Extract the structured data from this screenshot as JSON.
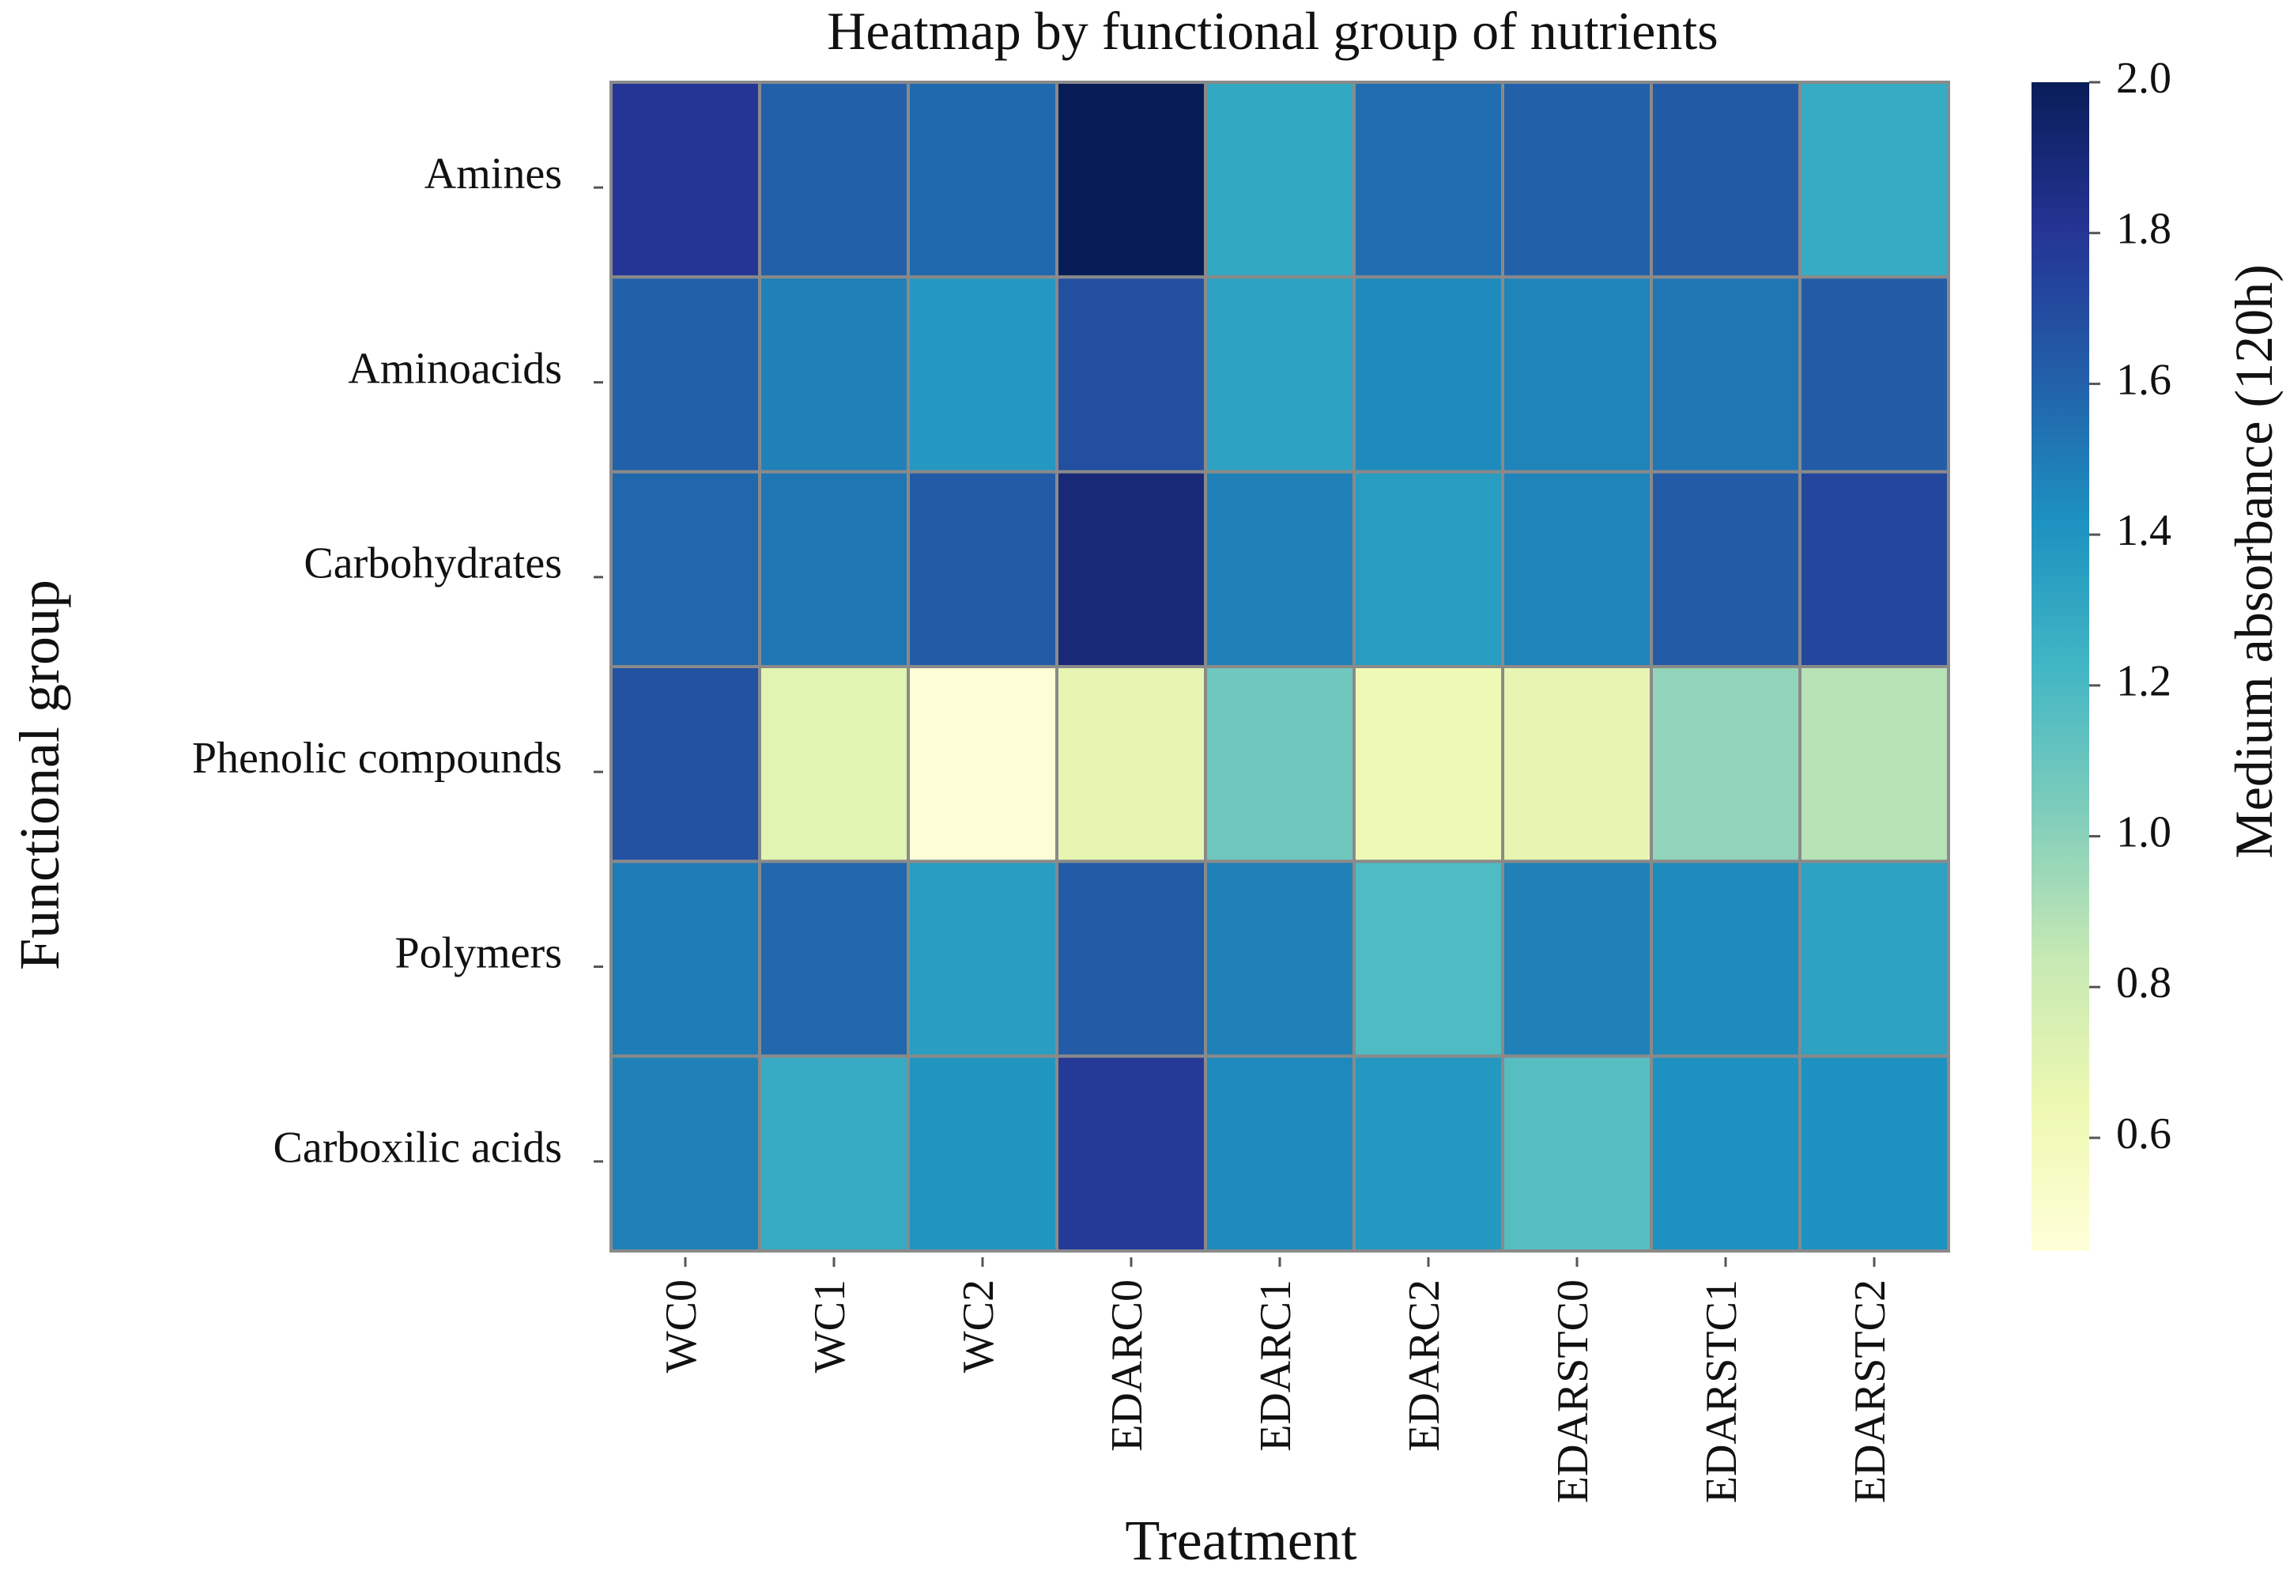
{
  "chart_data": {
    "type": "heatmap",
    "title": "Heatmap by functional group of nutrients",
    "xlabel": "Treatment",
    "ylabel": "Functional group",
    "colorbar_label": "Medium absorbance (120h)",
    "x_categories": [
      "WC0",
      "WC1",
      "WC2",
      "EDARC0",
      "EDARC1",
      "EDARC2",
      "EDARSTC0",
      "EDARSTC1",
      "EDARSTC2"
    ],
    "y_categories": [
      "Amines",
      "Aminoacids",
      "Carbohydrates",
      "Phenolic compounds",
      "Polymers",
      "Carboxilic acids"
    ],
    "values": [
      [
        1.8,
        1.6,
        1.57,
        2.0,
        1.3,
        1.55,
        1.6,
        1.63,
        1.28
      ],
      [
        1.6,
        1.48,
        1.38,
        1.68,
        1.33,
        1.44,
        1.47,
        1.52,
        1.62
      ],
      [
        1.58,
        1.52,
        1.62,
        1.9,
        1.48,
        1.36,
        1.47,
        1.62,
        1.72
      ],
      [
        1.67,
        0.7,
        0.47,
        0.68,
        1.08,
        0.62,
        0.68,
        0.98,
        0.88
      ],
      [
        1.5,
        1.58,
        1.35,
        1.62,
        1.48,
        1.18,
        1.48,
        1.44,
        1.33
      ],
      [
        1.48,
        1.28,
        1.4,
        1.78,
        1.45,
        1.38,
        1.16,
        1.42,
        1.42
      ]
    ],
    "colorbar": {
      "min": 0.45,
      "max": 2.0,
      "ticks": [
        0.6,
        0.8,
        1.0,
        1.2,
        1.4,
        1.6,
        1.8,
        2.0
      ],
      "tick_labels": [
        "0.6",
        "0.8",
        "1.0",
        "1.2",
        "1.4",
        "1.6",
        "1.8",
        "2.0"
      ],
      "colormap": "YlGnBu",
      "stops": [
        "#ffffd9",
        "#edf8b1",
        "#c7e9b4",
        "#7fcdbb",
        "#41b6c4",
        "#1d91c0",
        "#225ea8",
        "#253494",
        "#081d58"
      ]
    },
    "grid_line_color": "#8a8a8a"
  }
}
